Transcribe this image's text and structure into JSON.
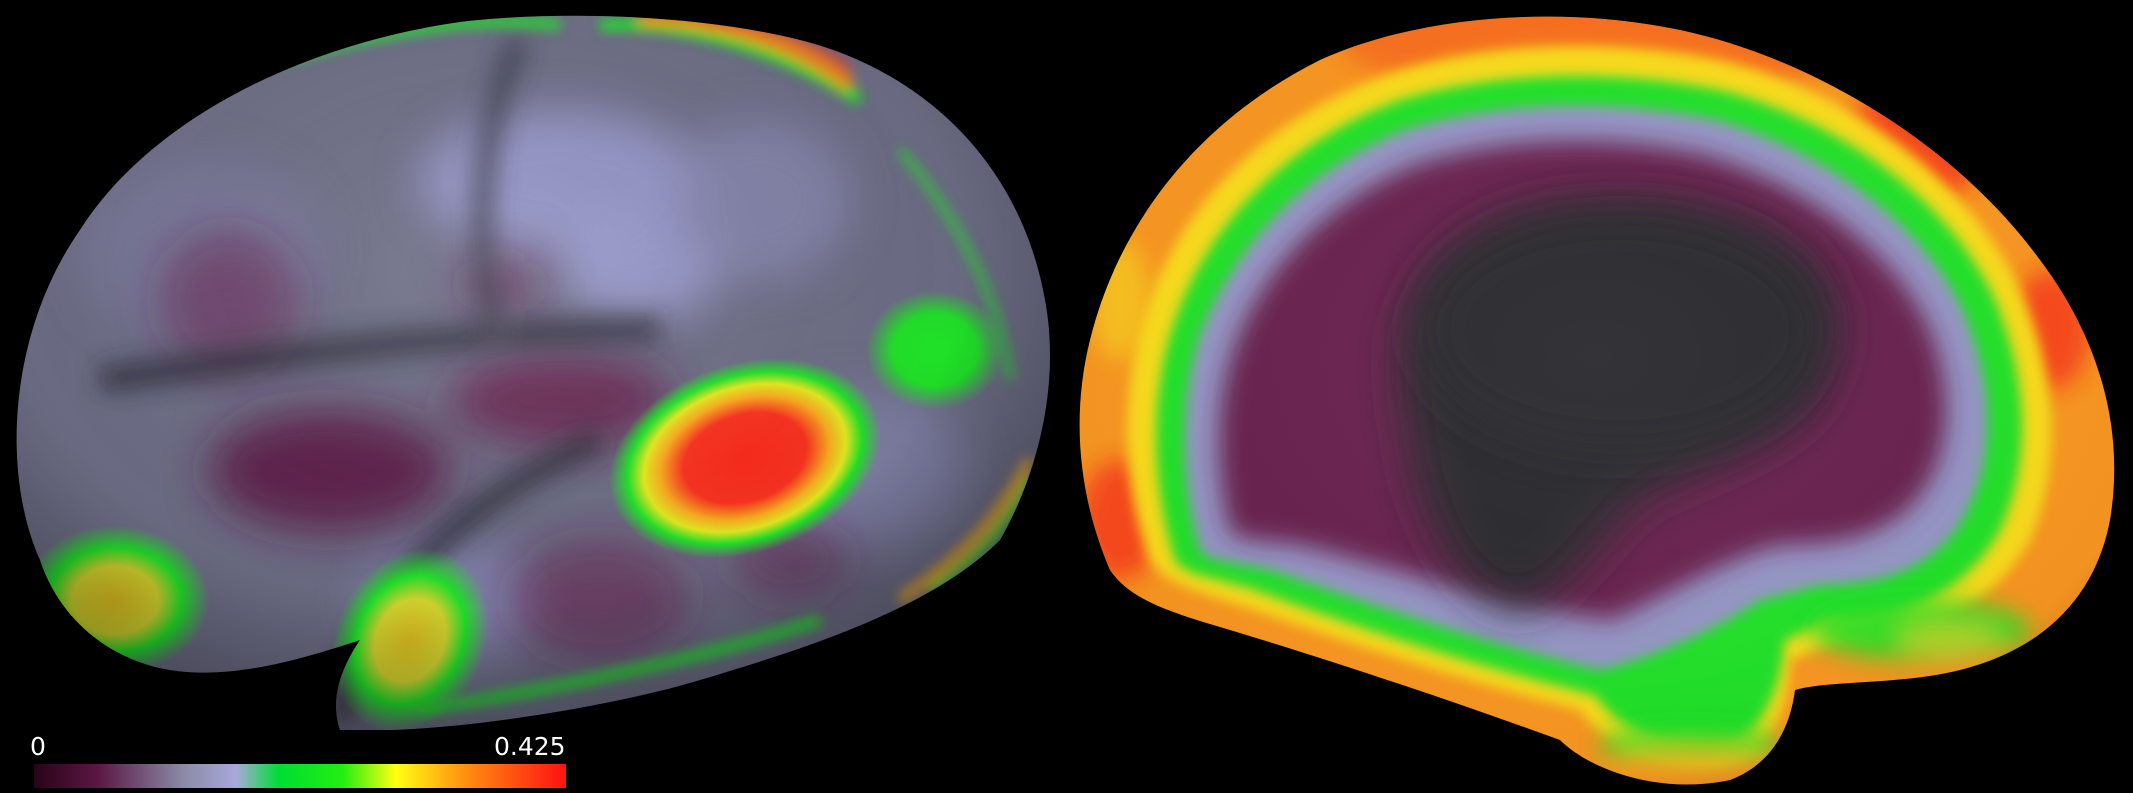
{
  "colorbar": {
    "min_label": "0",
    "max_label": "0.425",
    "min": 0,
    "max": 0.425,
    "colormap": [
      "#2a0418",
      "#5a1744",
      "#8a8aa6",
      "#a8a8dc",
      "#00dd33",
      "#22ee11",
      "#ffff11",
      "#ff8811",
      "#ff1111"
    ]
  },
  "colors": {
    "background": "#000000",
    "cortex_base": "#6f6f88",
    "low": "#6a2150",
    "mid": "#a8a8dc",
    "green": "#22e62a",
    "yellow": "#ffe11a",
    "orange": "#ff8a1a",
    "red": "#ff2a1a",
    "medial_wall": "#2b2b2f"
  },
  "views": [
    {
      "name": "lateral-view"
    },
    {
      "name": "medial-view"
    }
  ]
}
